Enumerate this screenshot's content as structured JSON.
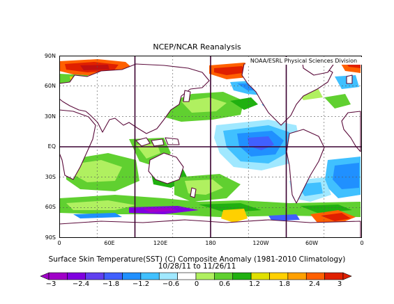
{
  "title": "NCEP/NCAR Reanalysis",
  "credit": "NOAA/ESRL Physical Sciences Division",
  "map": {
    "lat_labels": [
      "90N",
      "60N",
      "30N",
      "EQ",
      "30S",
      "60S",
      "90S"
    ],
    "lon_labels": [
      "0",
      "60E",
      "120E",
      "180",
      "120W",
      "60W",
      "0"
    ]
  },
  "caption": {
    "line1": "Surface Skin Temperature(SST) (C) Composite Anomaly (1981-2010 Climatology)",
    "line2": "10/28/11 to 11/26/11"
  },
  "colorbar": {
    "labels": [
      "−3",
      "−2.4",
      "−1.8",
      "−1.2",
      "−0.6",
      "0",
      "0.6",
      "1.2",
      "1.8",
      "2.4",
      "3"
    ],
    "colors": [
      "#a000c8",
      "#8000e0",
      "#6040f0",
      "#4060ff",
      "#2090ff",
      "#40c0ff",
      "#a0e8ff",
      "#ffffff",
      "#b0f060",
      "#60d030",
      "#20b010",
      "#e0e000",
      "#ffd000",
      "#ffa000",
      "#ff6000",
      "#e02000"
    ]
  },
  "colors": {
    "land": "#ffffff",
    "coast": "#5a0a3a",
    "grid": "#3a0030"
  }
}
